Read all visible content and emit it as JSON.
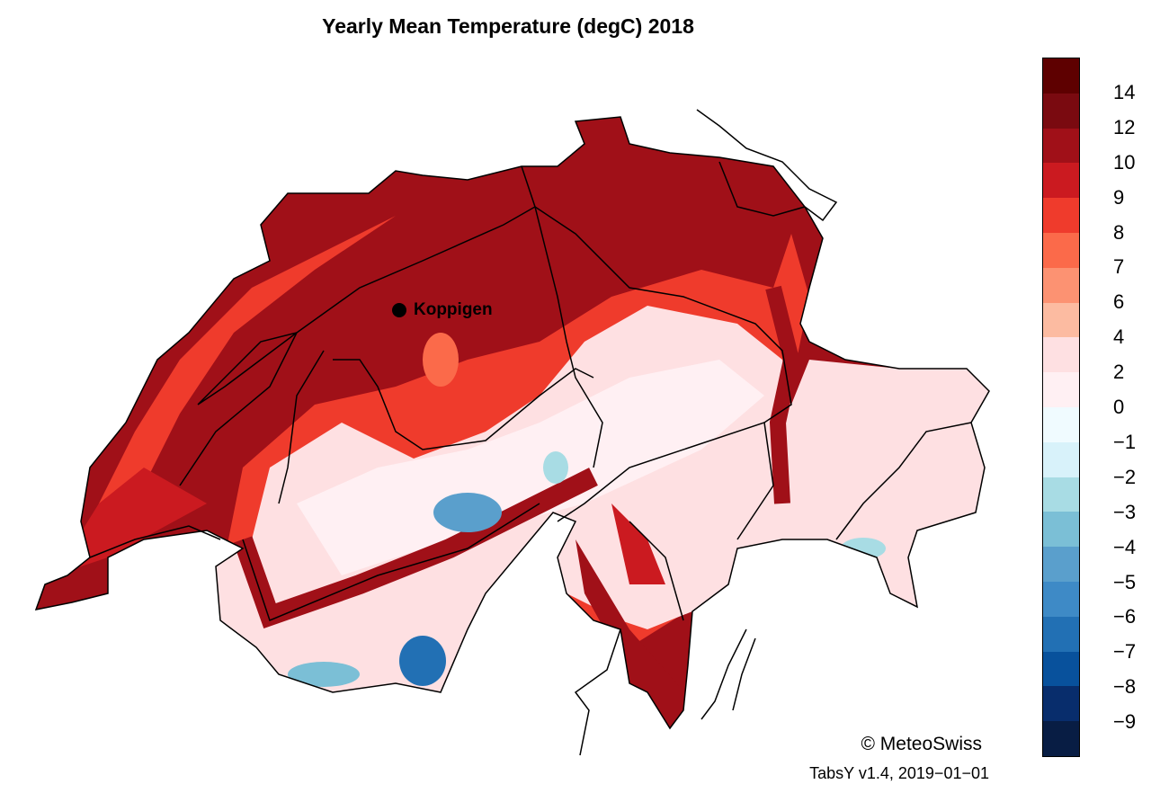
{
  "title": "Yearly Mean Temperature (degC) 2018",
  "station": {
    "name": "Koppigen"
  },
  "colorbar": {
    "labels": [
      "14",
      "12",
      "10",
      "9",
      "8",
      "7",
      "6",
      "4",
      "2",
      "0",
      "−1",
      "−2",
      "−3",
      "−4",
      "−5",
      "−6",
      "−7",
      "−8",
      "−9"
    ],
    "colors": [
      "#5e0000",
      "#7a0a10",
      "#a01018",
      "#cb1a20",
      "#ef3b2c",
      "#fb6a4a",
      "#fc9272",
      "#fcbba1",
      "#fee0e2",
      "#fff0f3",
      "#f0fbff",
      "#d8f2fa",
      "#a8dce4",
      "#7bbfd6",
      "#5a9fcc",
      "#3e8ac6",
      "#2270b4",
      "#08519c",
      "#082d6c",
      "#081d44"
    ]
  },
  "copyright": "© MeteoSwiss",
  "version": "TabsY v1.4, 2019−01−01"
}
